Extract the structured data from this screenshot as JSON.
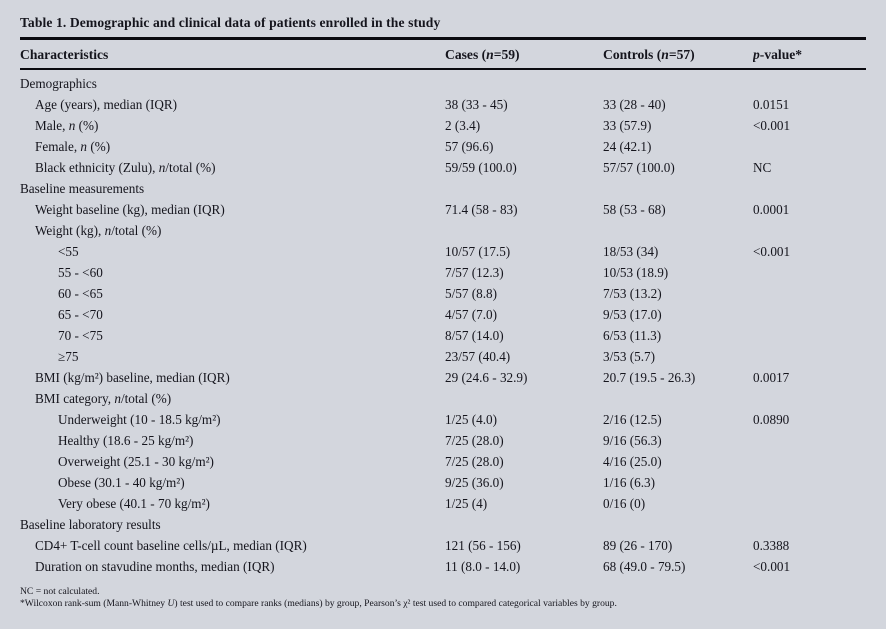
{
  "colors": {
    "background": "#d3d6dd",
    "text": "#15151d",
    "rule": "#0b0b10"
  },
  "table": {
    "title": "Table 1. Demographic and clinical data of patients enrolled in the study",
    "columns": [
      "Characteristics",
      "Cases (<i>n</i>=59)",
      "Controls (<i>n</i>=57)",
      "<i>p</i>-value*"
    ],
    "rows": [
      {
        "label": "Demographics",
        "indent": 0,
        "section": true,
        "cases": "",
        "controls": "",
        "p": ""
      },
      {
        "label": "Age (years), median (IQR)",
        "indent": 1,
        "cases": "38 (33 - 45)",
        "controls": "33 (28 - 40)",
        "p": "0.0151"
      },
      {
        "label": "Male, <i>n</i> (%)",
        "indent": 1,
        "cases": "2 (3.4)",
        "controls": "33 (57.9)",
        "p": "<0.001"
      },
      {
        "label": "Female, <i>n</i> (%)",
        "indent": 1,
        "cases": "57 (96.6)",
        "controls": "24 (42.1)",
        "p": ""
      },
      {
        "label": "Black ethnicity (Zulu), <i>n</i>/total (%)",
        "indent": 1,
        "cases": "59/59 (100.0)",
        "controls": "57/57 (100.0)",
        "p": "NC"
      },
      {
        "label": "Baseline measurements",
        "indent": 0,
        "section": true,
        "cases": "",
        "controls": "",
        "p": ""
      },
      {
        "label": "Weight baseline (kg), median (IQR)",
        "indent": 1,
        "cases": "71.4 (58 - 83)",
        "controls": "58 (53 - 68)",
        "p": "0.0001"
      },
      {
        "label": "Weight (kg), <i>n</i>/total (%)",
        "indent": 1,
        "cases": "",
        "controls": "",
        "p": ""
      },
      {
        "label": "&lt;55",
        "indent": 2,
        "cases": "10/57 (17.5)",
        "controls": "18/53 (34)",
        "p": "<0.001"
      },
      {
        "label": "55 - &lt;60",
        "indent": 2,
        "cases": "7/57 (12.3)",
        "controls": "10/53 (18.9)",
        "p": ""
      },
      {
        "label": "60 - &lt;65",
        "indent": 2,
        "cases": "5/57 (8.8)",
        "controls": "7/53 (13.2)",
        "p": ""
      },
      {
        "label": "65 - &lt;70",
        "indent": 2,
        "cases": "4/57 (7.0)",
        "controls": "9/53 (17.0)",
        "p": ""
      },
      {
        "label": "70 - &lt;75",
        "indent": 2,
        "cases": "8/57 (14.0)",
        "controls": "6/53 (11.3)",
        "p": ""
      },
      {
        "label": "≥75",
        "indent": 2,
        "cases": "23/57 (40.4)",
        "controls": "3/53 (5.7)",
        "p": ""
      },
      {
        "label": "BMI (kg/m²) baseline, median (IQR)",
        "indent": 1,
        "cases": "29 (24.6 - 32.9)",
        "controls": "20.7 (19.5 - 26.3)",
        "p": "0.0017"
      },
      {
        "label": "BMI category, <i>n</i>/total (%)",
        "indent": 1,
        "cases": "",
        "controls": "",
        "p": ""
      },
      {
        "label": "Underweight (10 - 18.5 kg/m²)",
        "indent": 2,
        "cases": "1/25 (4.0)",
        "controls": "2/16 (12.5)",
        "p": "0.0890"
      },
      {
        "label": "Healthy (18.6 - 25 kg/m²)",
        "indent": 2,
        "cases": "7/25 (28.0)",
        "controls": "9/16 (56.3)",
        "p": ""
      },
      {
        "label": "Overweight (25.1 - 30 kg/m²)",
        "indent": 2,
        "cases": "7/25 (28.0)",
        "controls": "4/16 (25.0)",
        "p": ""
      },
      {
        "label": "Obese (30.1 - 40 kg/m²)",
        "indent": 2,
        "cases": "9/25 (36.0)",
        "controls": "1/16 (6.3)",
        "p": ""
      },
      {
        "label": "Very obese (40.1 - 70 kg/m²)",
        "indent": 2,
        "cases": "1/25 (4)",
        "controls": "0/16 (0)",
        "p": ""
      },
      {
        "label": "Baseline laboratory results",
        "indent": 0,
        "section": true,
        "cases": "",
        "controls": "",
        "p": ""
      },
      {
        "label": "CD4+ T-cell count baseline cells/µL, median (IQR)",
        "indent": 1,
        "cases": "121 (56 - 156)",
        "controls": "89 (26 - 170)",
        "p": "0.3388"
      },
      {
        "label": "Duration on stavudine months, median (IQR)",
        "indent": 1,
        "cases": "11 (8.0 - 14.0)",
        "controls": "68 (49.0 - 79.5)",
        "p": "<0.001"
      }
    ],
    "footnotes": [
      "NC = not calculated.",
      "*Wilcoxon rank-sum (Mann-Whitney <i>U</i>) test used to compare ranks (medians) by group, Pearson’s χ² test used to compared categorical variables by group."
    ]
  }
}
